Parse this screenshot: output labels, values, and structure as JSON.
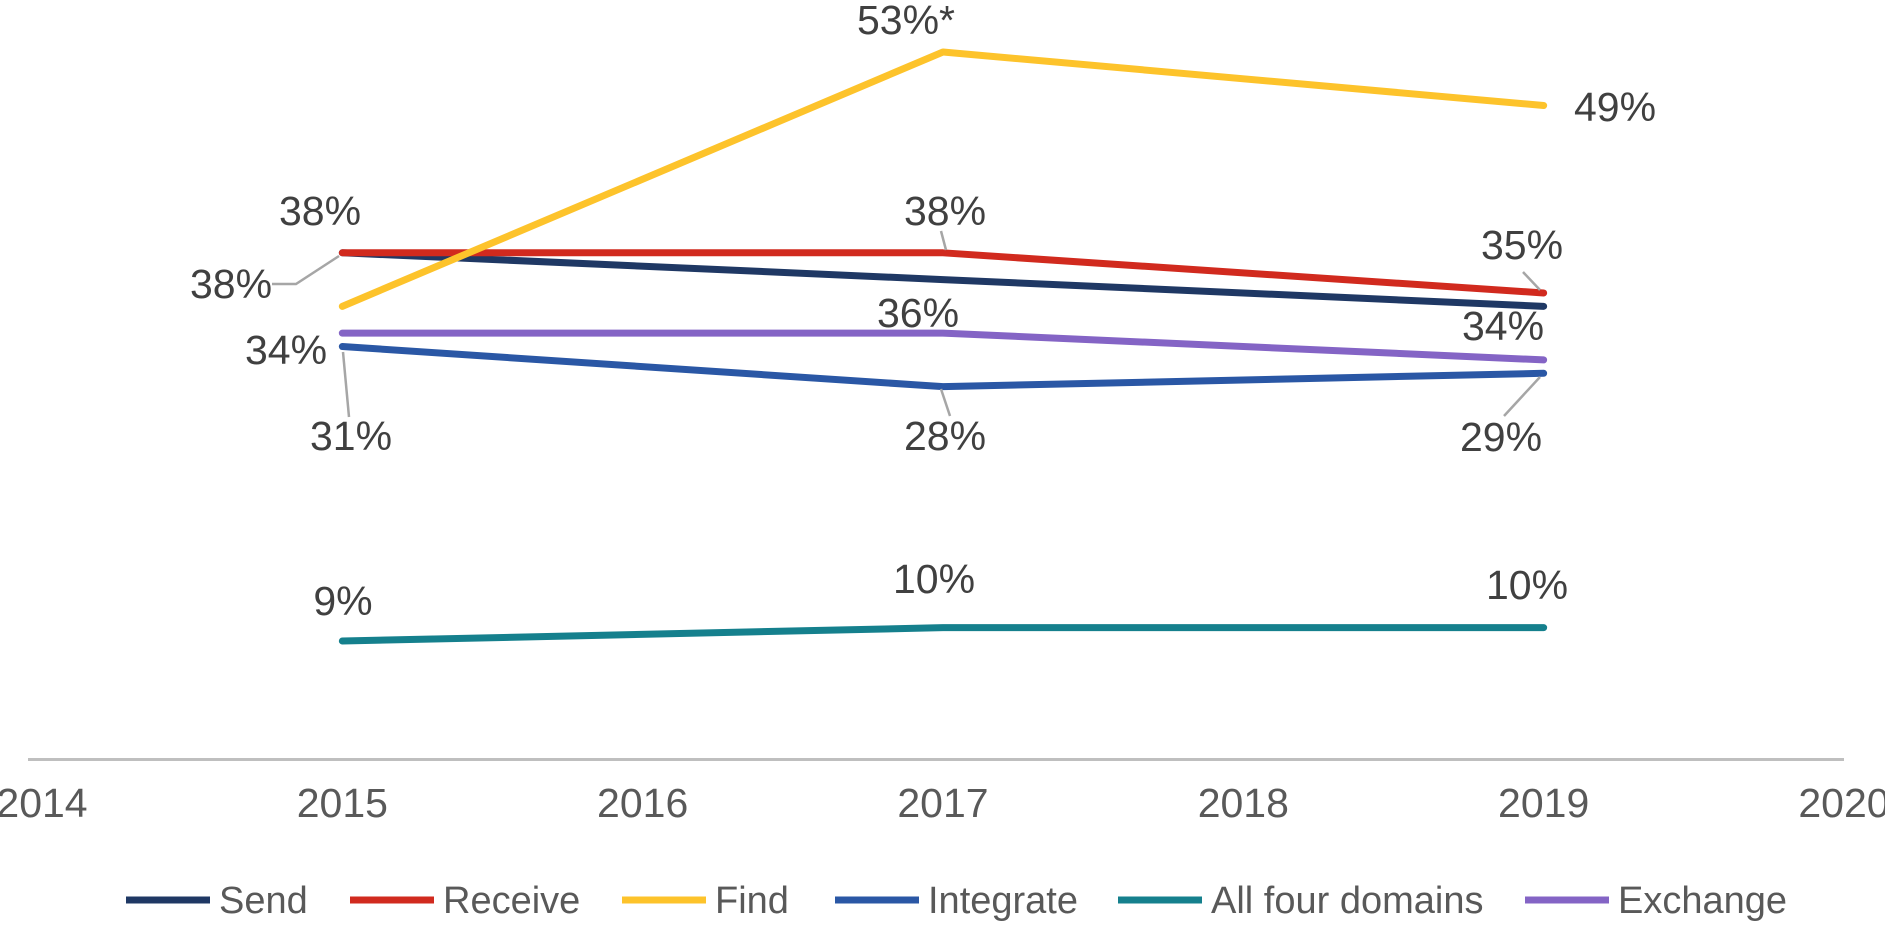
{
  "colors": {
    "background": "#FFFFFF",
    "label_text": "#404040",
    "axis_text": "#595959",
    "axis_line": "#BFBFBF",
    "leader_line": "#A6A6A6"
  },
  "chart_data": {
    "type": "line",
    "title": "",
    "xlabel": "",
    "ylabel": "",
    "grid": false,
    "legend_position": "bottom",
    "x_axis_categories": [
      "2014",
      "2015",
      "2016",
      "2017",
      "2018",
      "2019",
      "2020"
    ],
    "data_x": [
      "2015",
      "2017",
      "2019"
    ],
    "y_implied_range": [
      0,
      60
    ],
    "series": [
      {
        "name": "Send",
        "color": "#1F3864",
        "values": [
          38,
          36,
          34
        ],
        "point_labels": [
          "38%",
          "36%",
          "34%"
        ]
      },
      {
        "name": "Receive",
        "color": "#D12A1E",
        "values": [
          38,
          38,
          35
        ],
        "point_labels": [
          "38%",
          "38%",
          "35%"
        ]
      },
      {
        "name": "Find",
        "color": "#FDC32B",
        "values": [
          34,
          53,
          49
        ],
        "point_labels": [
          "34%",
          "53%*",
          "49%"
        ]
      },
      {
        "name": "Integrate",
        "color": "#2A57A5",
        "values": [
          31,
          28,
          29
        ],
        "point_labels": [
          "31%",
          "28%",
          "29%"
        ]
      },
      {
        "name": "All four domains",
        "color": "#15808D",
        "values": [
          9,
          10,
          10
        ],
        "point_labels": [
          "9%",
          "10%",
          "10%"
        ]
      },
      {
        "name": "Exchange",
        "color": "#8464C5",
        "values": [
          32,
          32,
          30
        ],
        "point_labels": [
          null,
          null,
          null
        ]
      }
    ],
    "legend_entries": [
      "Send",
      "Receive",
      "Find",
      "Integrate",
      "All four domains",
      "Exchange"
    ]
  }
}
